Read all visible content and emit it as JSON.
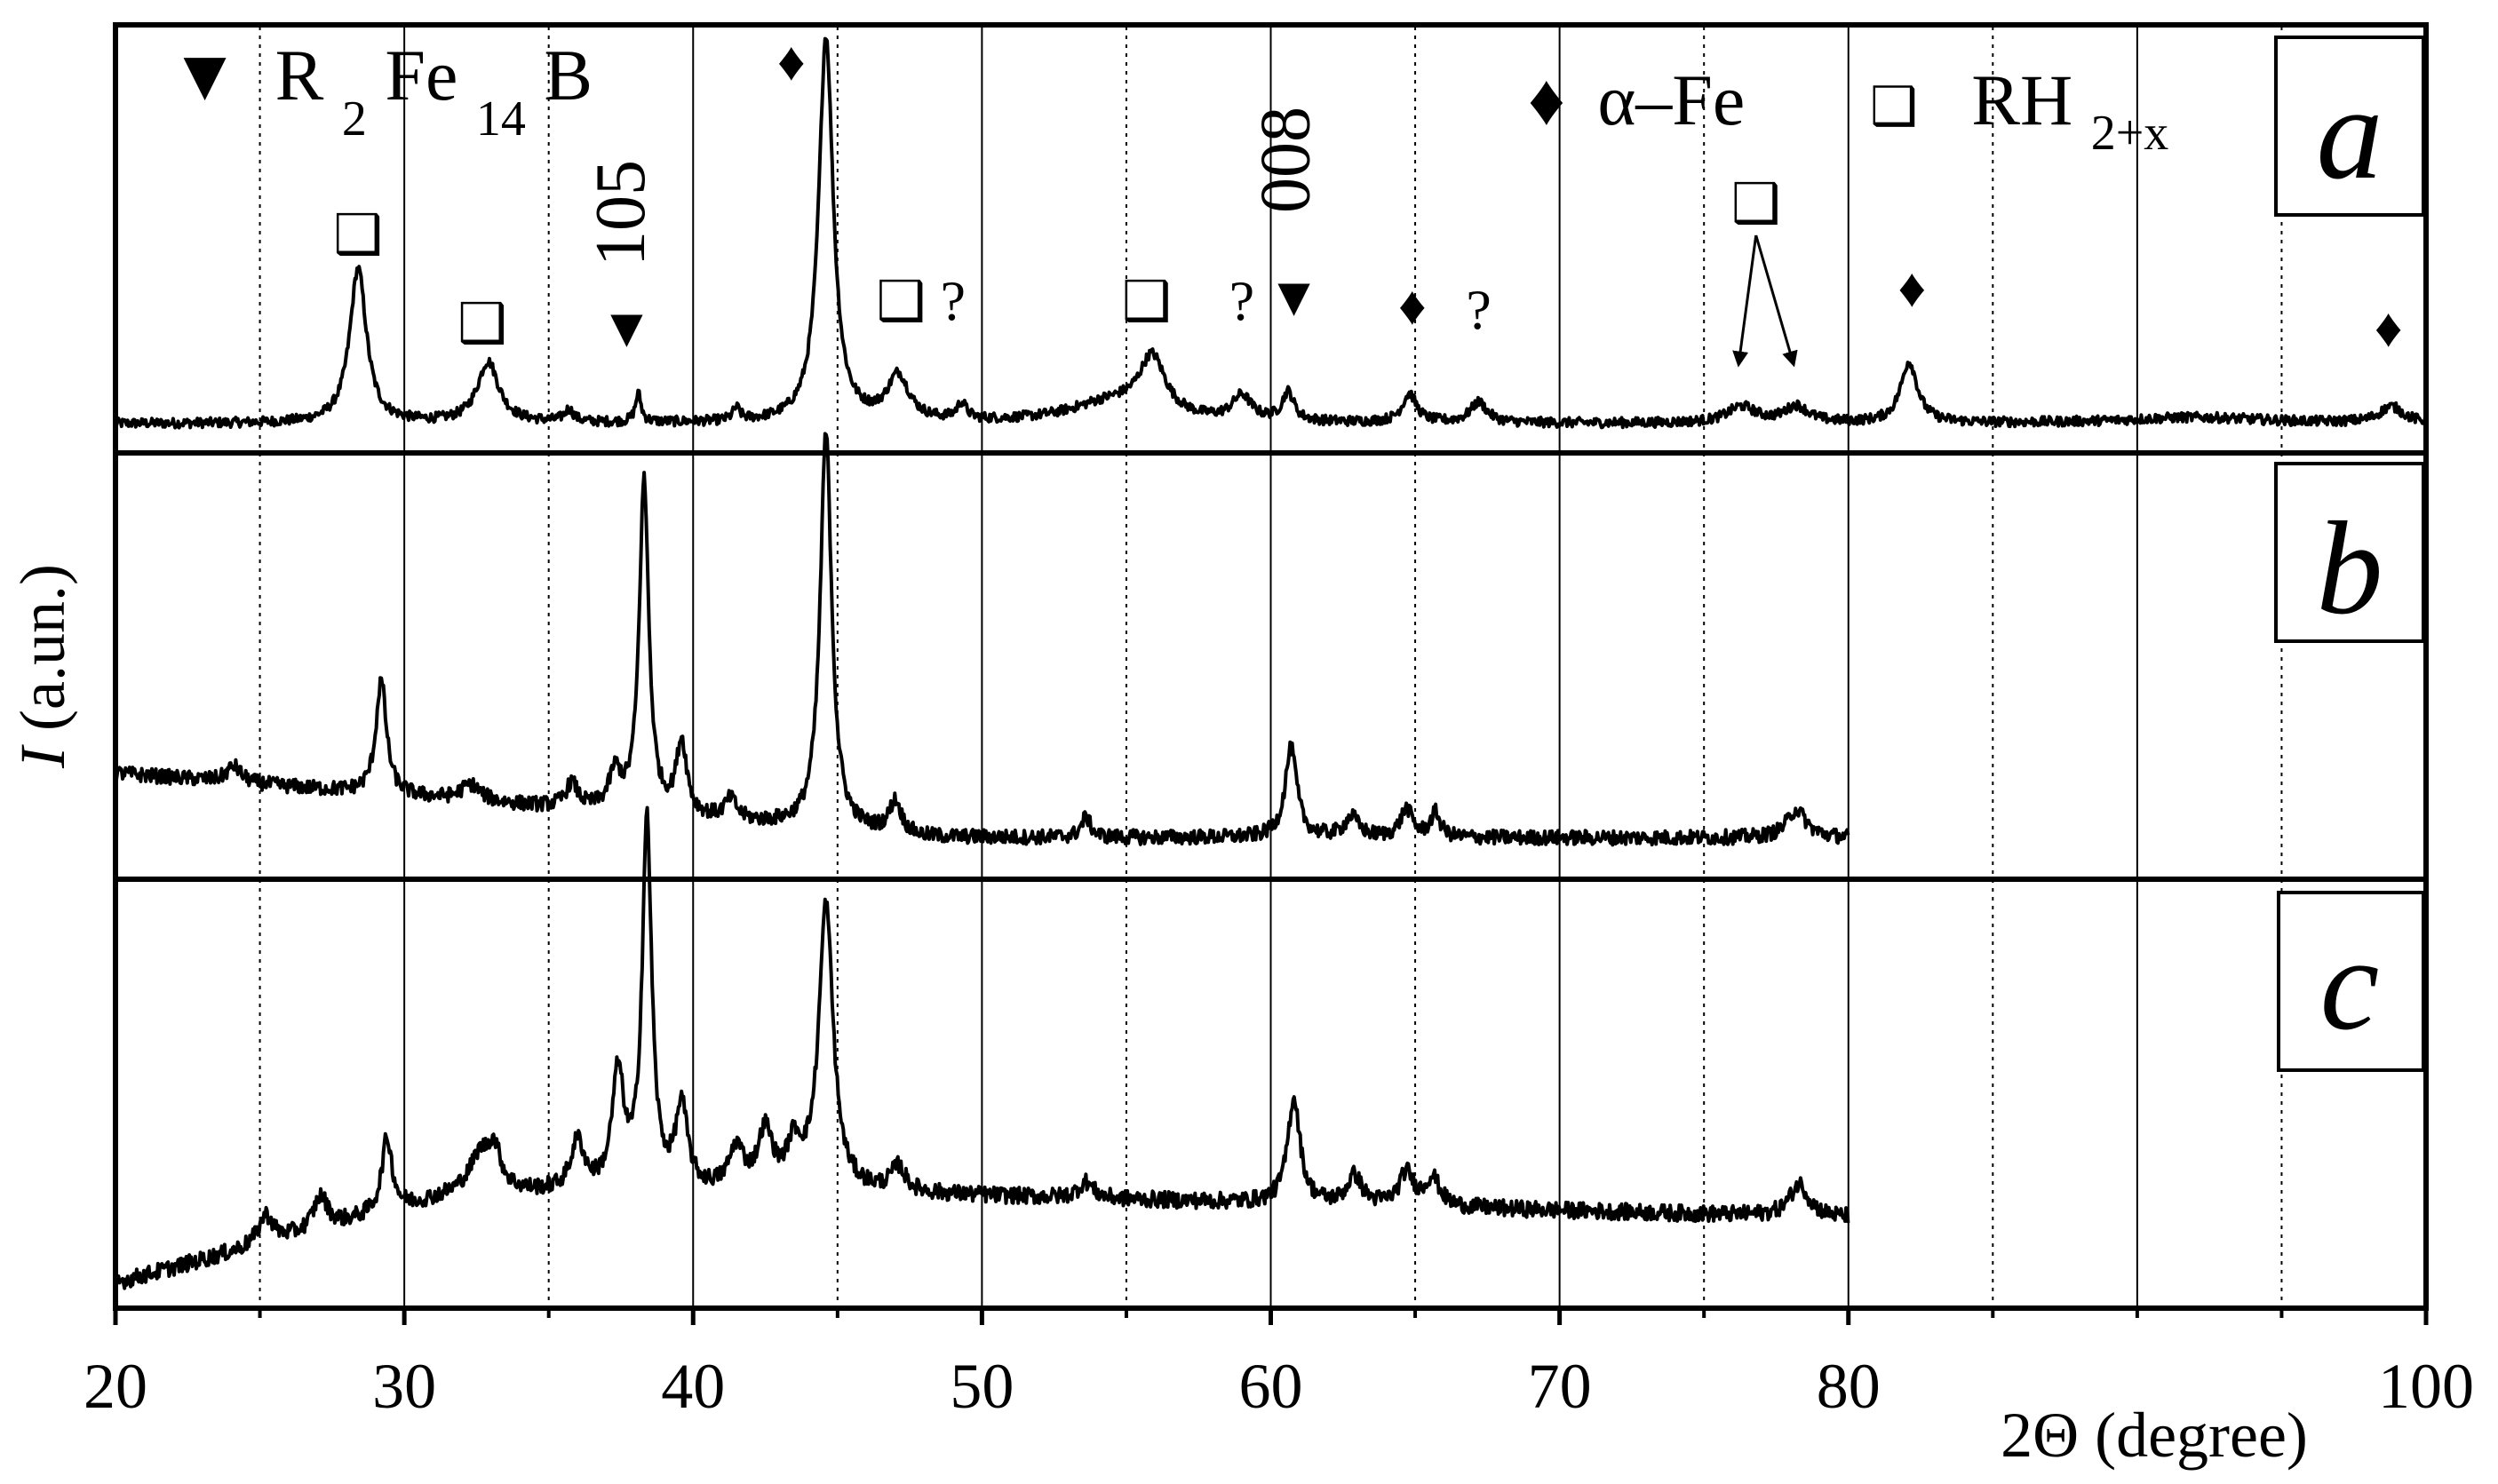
{
  "chart_data": {
    "type": "line",
    "xlabel": "2Θ (degree)",
    "ylabel_italic": "I",
    "ylabel_rest": " (a.un.)",
    "xlim": [
      20,
      100
    ],
    "xticks": [
      "20",
      "30",
      "40",
      "50",
      "60",
      "70",
      "80",
      "100"
    ],
    "x_major_gridlines": [
      30,
      40,
      50,
      60,
      70,
      80,
      90
    ],
    "x_minor_gridlines": [
      25,
      35,
      45,
      55,
      65,
      75,
      85,
      95
    ],
    "legend": {
      "r2fe14b": {
        "symbol": "▼",
        "base_a": "R",
        "sub_a": "2",
        "base_b": "Fe",
        "sub_b": "14",
        "base_c": "B"
      },
      "alpha_fe": {
        "symbol": "♦",
        "label": "α–Fe"
      },
      "rh2x": {
        "symbol": "❑",
        "base": "RH",
        "sub": "2+x"
      }
    },
    "panels": [
      {
        "name": "a",
        "letter": "a",
        "x_range": [
          20,
          100
        ],
        "baseline": 0.05,
        "noise": 0.012,
        "slope": 0.0,
        "peaks": [
          [
            28.4,
            0.38,
            0.35
          ],
          [
            32.9,
            0.15,
            0.45
          ],
          [
            35.7,
            0.03,
            0.2
          ],
          [
            38.1,
            0.07,
            0.12
          ],
          [
            41.5,
            0.03,
            0.15
          ],
          [
            44.6,
            0.95,
            0.3
          ],
          [
            47.1,
            0.11,
            0.45
          ],
          [
            49.3,
            0.04,
            0.2
          ],
          [
            54.5,
            0.05,
            1.8
          ],
          [
            55.9,
            0.14,
            0.55
          ],
          [
            59.0,
            0.06,
            0.4
          ],
          [
            60.6,
            0.07,
            0.25
          ],
          [
            64.8,
            0.07,
            0.3
          ],
          [
            67.2,
            0.05,
            0.35
          ],
          [
            76.3,
            0.04,
            0.6
          ],
          [
            78.2,
            0.04,
            0.5
          ],
          [
            82.1,
            0.15,
            0.35
          ],
          [
            92.0,
            0.015,
            3.0
          ],
          [
            98.8,
            0.04,
            0.5
          ]
        ],
        "markers": [
          {
            "symbol": "❑",
            "x": 28.4
          },
          {
            "symbol": "❑",
            "x": 32.7
          },
          {
            "symbol": "▼",
            "x": 37.7
          },
          {
            "symbol": "♦",
            "x": 43.4
          },
          {
            "symbol": "❑",
            "x": 47.2
          },
          {
            "symbol": "?",
            "x": 49.0
          },
          {
            "symbol": "❑",
            "x": 55.7
          },
          {
            "symbol": "?",
            "x": 59.0
          },
          {
            "symbol": "▼",
            "x": 60.8
          },
          {
            "symbol": "♦",
            "x": 64.9
          },
          {
            "symbol": "?",
            "x": 67.2
          },
          {
            "symbol": "❑",
            "x": 76.8
          },
          {
            "symbol": "♦",
            "x": 82.2
          },
          {
            "symbol": "♦",
            "x": 98.7
          }
        ],
        "hkl": [
          {
            "label": "105",
            "x": 38.0
          },
          {
            "label": "008",
            "x": 60.7
          }
        ],
        "arrows": [
          {
            "from": 76.8,
            "to": 76.2
          },
          {
            "from": 76.8,
            "to": 78.1
          }
        ]
      },
      {
        "name": "b",
        "letter": "b",
        "x_range": [
          20,
          80
        ],
        "baseline": 0.08,
        "noise": 0.018,
        "slope": 0.25,
        "peaks": [
          [
            24.1,
            0.04,
            0.3
          ],
          [
            29.2,
            0.28,
            0.22
          ],
          [
            32.3,
            0.04,
            0.4
          ],
          [
            35.8,
            0.06,
            0.25
          ],
          [
            37.3,
            0.09,
            0.25
          ],
          [
            38.3,
            0.82,
            0.2
          ],
          [
            39.6,
            0.18,
            0.22
          ],
          [
            41.3,
            0.05,
            0.25
          ],
          [
            44.6,
            0.98,
            0.24
          ],
          [
            47.0,
            0.08,
            0.25
          ],
          [
            53.6,
            0.05,
            0.2
          ],
          [
            60.7,
            0.22,
            0.25
          ],
          [
            62.8,
            0.05,
            0.3
          ],
          [
            64.7,
            0.07,
            0.25
          ],
          [
            65.7,
            0.06,
            0.2
          ],
          [
            78.2,
            0.07,
            0.4
          ]
        ]
      },
      {
        "name": "c",
        "letter": "c",
        "x_range": [
          20,
          80
        ],
        "baseline": 0.1,
        "noise": 0.02,
        "slope": -0.15,
        "peaks": [
          [
            25.2,
            0.07,
            0.3
          ],
          [
            27.1,
            0.08,
            0.3
          ],
          [
            29.4,
            0.18,
            0.22
          ],
          [
            32.6,
            0.08,
            0.4
          ],
          [
            33.1,
            0.1,
            0.3
          ],
          [
            36.0,
            0.12,
            0.28
          ],
          [
            37.4,
            0.28,
            0.25
          ],
          [
            38.4,
            0.9,
            0.2
          ],
          [
            39.6,
            0.2,
            0.25
          ],
          [
            41.5,
            0.1,
            0.3
          ],
          [
            42.5,
            0.14,
            0.3
          ],
          [
            43.5,
            0.1,
            0.3
          ],
          [
            44.6,
            0.7,
            0.3
          ],
          [
            47.1,
            0.06,
            0.3
          ],
          [
            53.6,
            0.04,
            0.3
          ],
          [
            60.8,
            0.26,
            0.26
          ],
          [
            62.9,
            0.07,
            0.3
          ],
          [
            64.7,
            0.08,
            0.3
          ],
          [
            65.6,
            0.07,
            0.3
          ],
          [
            78.3,
            0.08,
            0.4
          ]
        ]
      }
    ]
  }
}
